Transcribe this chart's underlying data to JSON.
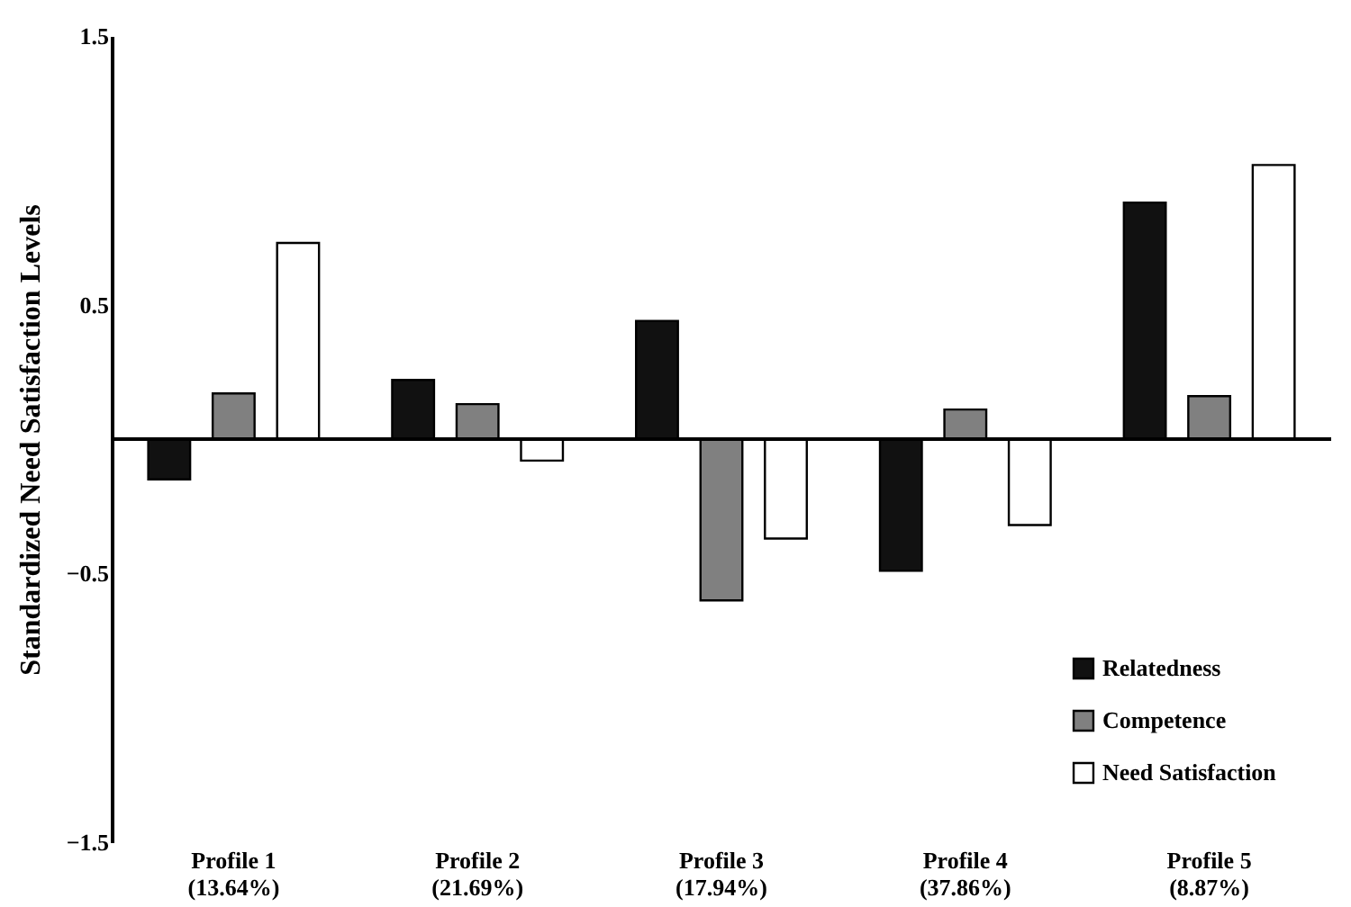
{
  "chart_data": {
    "type": "bar",
    "ylabel": "Standardized Need Satisfaction Levels",
    "categories": [
      "Profile 1\n(13.64%)",
      "Profile 2\n(21.69%)",
      "Profile 3\n(17.94%)",
      "Profile 4\n(37.86%)",
      "Profile 5\n(8.87%)"
    ],
    "series": [
      {
        "name": "Relatedness",
        "color": "#111111",
        "values": [
          -0.15,
          0.22,
          0.44,
          -0.49,
          0.88
        ]
      },
      {
        "name": "Competence",
        "color": "#808080",
        "values": [
          0.17,
          0.13,
          -0.6,
          0.11,
          0.16
        ]
      },
      {
        "name": "Need Satisfaction",
        "color": "#ffffff",
        "values": [
          0.73,
          -0.08,
          -0.37,
          -0.32,
          1.02
        ]
      }
    ],
    "ylim": [
      -1.5,
      1.5
    ],
    "yticks": [
      -1.5,
      -0.5,
      0.5,
      1.5
    ],
    "ref_lines": [
      {
        "axis": "y",
        "value": 0,
        "color": "#000000"
      }
    ],
    "legend": "bottom right"
  }
}
